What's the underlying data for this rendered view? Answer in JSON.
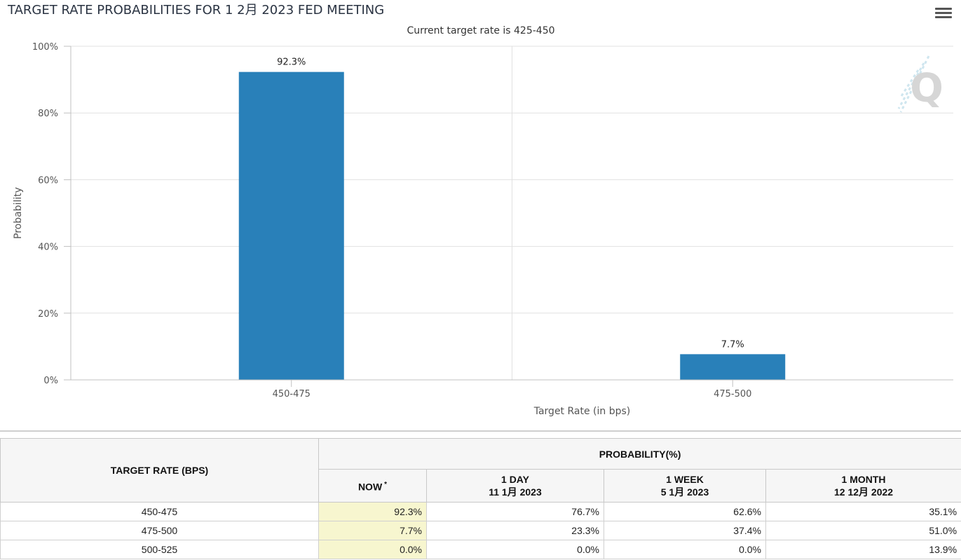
{
  "chart_data": {
    "type": "bar",
    "title": "TARGET RATE PROBABILITIES FOR 1 2月 2023 FED MEETING",
    "subtitle": "Current target rate is 425-450",
    "categories": [
      "450-475",
      "475-500"
    ],
    "values": [
      92.3,
      7.7
    ],
    "value_labels": [
      "92.3%",
      "7.7%"
    ],
    "xlabel": "Target Rate (in bps)",
    "ylabel": "Probability",
    "ylim": [
      0,
      100
    ],
    "yticks": [
      0,
      20,
      40,
      60,
      80,
      100
    ],
    "ytick_labels": [
      "0%",
      "20%",
      "40%",
      "60%",
      "80%",
      "100%"
    ],
    "bar_color": "#2980b9",
    "grid": true,
    "legend": "none"
  },
  "watermark_letter": "Q",
  "menu_icon": "hamburger-menu-icon",
  "table": {
    "target_rate_header": "TARGET RATE (BPS)",
    "probability_header": "PROBABILITY(%)",
    "columns": [
      {
        "line1": "NOW",
        "line2": "",
        "marker": "*"
      },
      {
        "line1": "1 DAY",
        "line2": "11 1月 2023",
        "marker": ""
      },
      {
        "line1": "1 WEEK",
        "line2": "5 1月 2023",
        "marker": ""
      },
      {
        "line1": "1 MONTH",
        "line2": "12 12月 2022",
        "marker": ""
      }
    ],
    "rows": [
      {
        "rate": "450-475",
        "values": [
          "92.3%",
          "76.7%",
          "62.6%",
          "35.1%"
        ]
      },
      {
        "rate": "475-500",
        "values": [
          "7.7%",
          "23.3%",
          "37.4%",
          "51.0%"
        ]
      },
      {
        "rate": "500-525",
        "values": [
          "0.0%",
          "0.0%",
          "0.0%",
          "13.9%"
        ]
      }
    ],
    "now_highlight_color": "#f7f6cf"
  }
}
